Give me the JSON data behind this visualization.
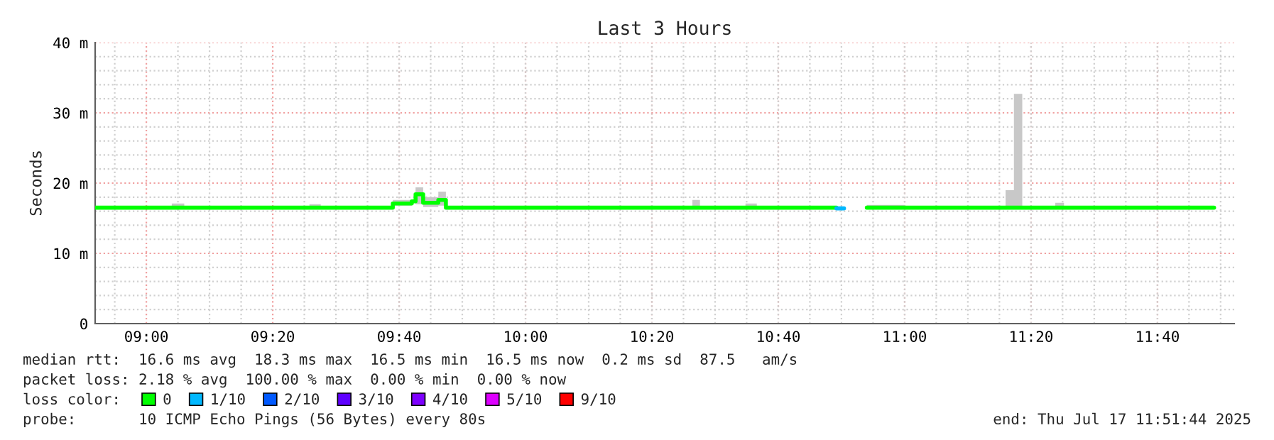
{
  "chart_data": {
    "type": "step",
    "title": "Last 3 Hours",
    "ylabel": "Seconds",
    "legend_title": "loss color:",
    "x": [
      8.865,
      9.0,
      9.067,
      9.1,
      9.25,
      9.43,
      9.46,
      9.6,
      9.65,
      9.7,
      9.71,
      9.73,
      9.77,
      9.79,
      9.95,
      10.25,
      10.44,
      10.46,
      10.58,
      10.61,
      10.82,
      10.84,
      10.9,
      11.0,
      11.266,
      11.288,
      11.31,
      11.397,
      11.42,
      11.6,
      11.816
    ],
    "series": [
      {
        "name": "0",
        "color": "#00ff00",
        "values": [
          16.5,
          16.5,
          16.5,
          16.5,
          16.5,
          16.5,
          16.5,
          16.5,
          17.1,
          17.4,
          18.4,
          17.2,
          17.6,
          16.5,
          16.5,
          16.5,
          16.5,
          16.5,
          16.5,
          16.5,
          null,
          null,
          16.5,
          16.5,
          16.5,
          16.5,
          16.5,
          16.5,
          16.5,
          16.5,
          16.5
        ],
        "lower": [
          16.3,
          16.3,
          16.3,
          16.3,
          16.3,
          16.3,
          16.3,
          16.3,
          16.8,
          17.2,
          17.0,
          16.6,
          16.8,
          16.3,
          16.3,
          16.3,
          16.3,
          16.3,
          16.3,
          16.3,
          null,
          null,
          16.3,
          16.3,
          16.3,
          16.3,
          16.3,
          16.3,
          16.3,
          16.3,
          16.3
        ],
        "upper": [
          16.7,
          16.7,
          17.1,
          16.7,
          16.7,
          17.0,
          16.7,
          16.7,
          17.6,
          17.6,
          19.4,
          18.0,
          18.8,
          16.7,
          16.7,
          16.7,
          17.6,
          16.7,
          17.1,
          16.7,
          null,
          null,
          16.9,
          16.7,
          19.0,
          32.7,
          16.7,
          17.2,
          16.7,
          16.7,
          16.7
        ]
      },
      {
        "name": "1/10",
        "color": "#00b8ff",
        "x": [
          10.82,
          10.84
        ],
        "values": [
          16.4,
          16.4
        ]
      },
      {
        "name": "2/10",
        "color": "#0059ff",
        "values": [
          null,
          null,
          null,
          null,
          null,
          null,
          null,
          null,
          null,
          null,
          null,
          null,
          null,
          null,
          null,
          null,
          null,
          null,
          null,
          null,
          null,
          null,
          null,
          null,
          null,
          null,
          null,
          null,
          null,
          null,
          null
        ]
      },
      {
        "name": "3/10",
        "color": "#5e00ff",
        "values": [
          null,
          null,
          null,
          null,
          null,
          null,
          null,
          null,
          null,
          null,
          null,
          null,
          null,
          null,
          null,
          null,
          null,
          null,
          null,
          null,
          null,
          null,
          null,
          null,
          null,
          null,
          null,
          null,
          null,
          null,
          null
        ]
      },
      {
        "name": "4/10",
        "color": "#7e00ff",
        "values": [
          null,
          null,
          null,
          null,
          null,
          null,
          null,
          null,
          null,
          null,
          null,
          null,
          null,
          null,
          null,
          null,
          null,
          null,
          null,
          null,
          null,
          null,
          null,
          null,
          null,
          null,
          null,
          null,
          null,
          null,
          null
        ]
      },
      {
        "name": "5/10",
        "color": "#dd00ff",
        "values": [
          null,
          null,
          null,
          null,
          null,
          null,
          null,
          null,
          null,
          null,
          null,
          null,
          null,
          null,
          null,
          null,
          null,
          null,
          null,
          null,
          null,
          null,
          null,
          null,
          null,
          null,
          null,
          null,
          null,
          null,
          null
        ]
      },
      {
        "name": "9/10",
        "color": "#ff0000",
        "values": [
          null,
          null,
          null,
          null,
          null,
          null,
          null,
          null,
          null,
          null,
          null,
          null,
          null,
          null,
          null,
          null,
          null,
          null,
          null,
          null,
          null,
          null,
          null,
          null,
          null,
          null,
          null,
          null,
          null,
          null,
          null
        ]
      }
    ],
    "xlim": [
      8.865,
      11.869
    ],
    "xticks": [
      {
        "value": 9.0,
        "label": "09:00"
      },
      {
        "value": 9.3333,
        "label": "09:20"
      },
      {
        "value": 9.6667,
        "label": "09:40"
      },
      {
        "value": 10.0,
        "label": "10:00"
      },
      {
        "value": 10.3333,
        "label": "10:20"
      },
      {
        "value": 10.6667,
        "label": "10:40"
      },
      {
        "value": 11.0,
        "label": "11:00"
      },
      {
        "value": 11.3333,
        "label": "11:20"
      },
      {
        "value": 11.6667,
        "label": "11:40"
      }
    ],
    "ylim": [
      0,
      40
    ],
    "yticks": [
      0,
      {
        "value": 10,
        "label": "10 m"
      },
      {
        "value": 20,
        "label": "20 m"
      },
      {
        "value": 30,
        "label": "30 m"
      },
      {
        "value": 40,
        "label": "40 m"
      }
    ],
    "grid": true,
    "legend": "bottom",
    "annotations": [
      "median rtt:  16.6 ms avg  18.3 ms max  16.5 ms min  16.5 ms now  0.2 ms sd  87.5   am/s",
      "packet loss: 2.18 % avg  100.00 % max  0.00 % min  0.00 % now",
      "probe:       10 ICMP Echo Pings (56 Bytes) every 80s",
      "end: Thu Jul 17 11:51:44 2025"
    ]
  }
}
